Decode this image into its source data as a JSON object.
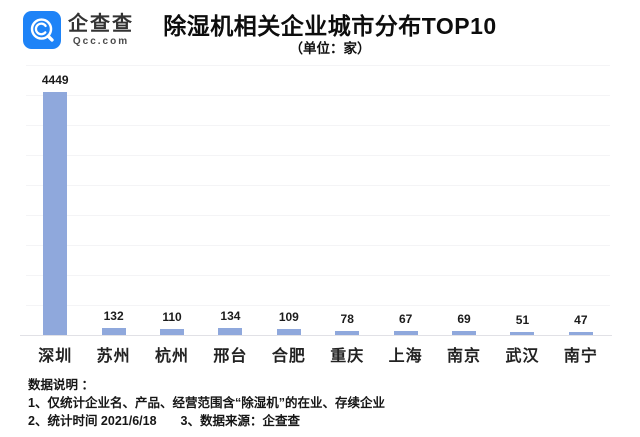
{
  "header": {
    "logo": {
      "name": "企查查",
      "domain": "Qcc.com",
      "brand_color": "#1E83F7"
    },
    "title": "除湿机相关企业城市分布TOP10",
    "subtitle": "（单位：家）"
  },
  "chart_data": {
    "type": "bar",
    "title": "除湿机相关企业城市分布TOP10",
    "unit_label": "（单位：家）",
    "categories": [
      "深圳",
      "苏州",
      "杭州",
      "邢台",
      "合肥",
      "重庆",
      "上海",
      "南京",
      "武汉",
      "南宁"
    ],
    "values": [
      4449,
      132,
      110,
      134,
      109,
      78,
      67,
      69,
      51,
      47
    ],
    "bar_color": "#8FA8DC",
    "ylim": [
      0,
      4500
    ],
    "grid": true,
    "value_labels_shown": true,
    "legend": "none",
    "xlabel": "",
    "ylabel": ""
  },
  "notes": {
    "heading": "数据说明 ：",
    "line1": "1、仅统计企业名、产品、经营范围含“除湿机”的在业、存续企业",
    "line2_left": "2、统计时间 2021/6/18",
    "line2_right": "3、数据来源：企查查"
  }
}
